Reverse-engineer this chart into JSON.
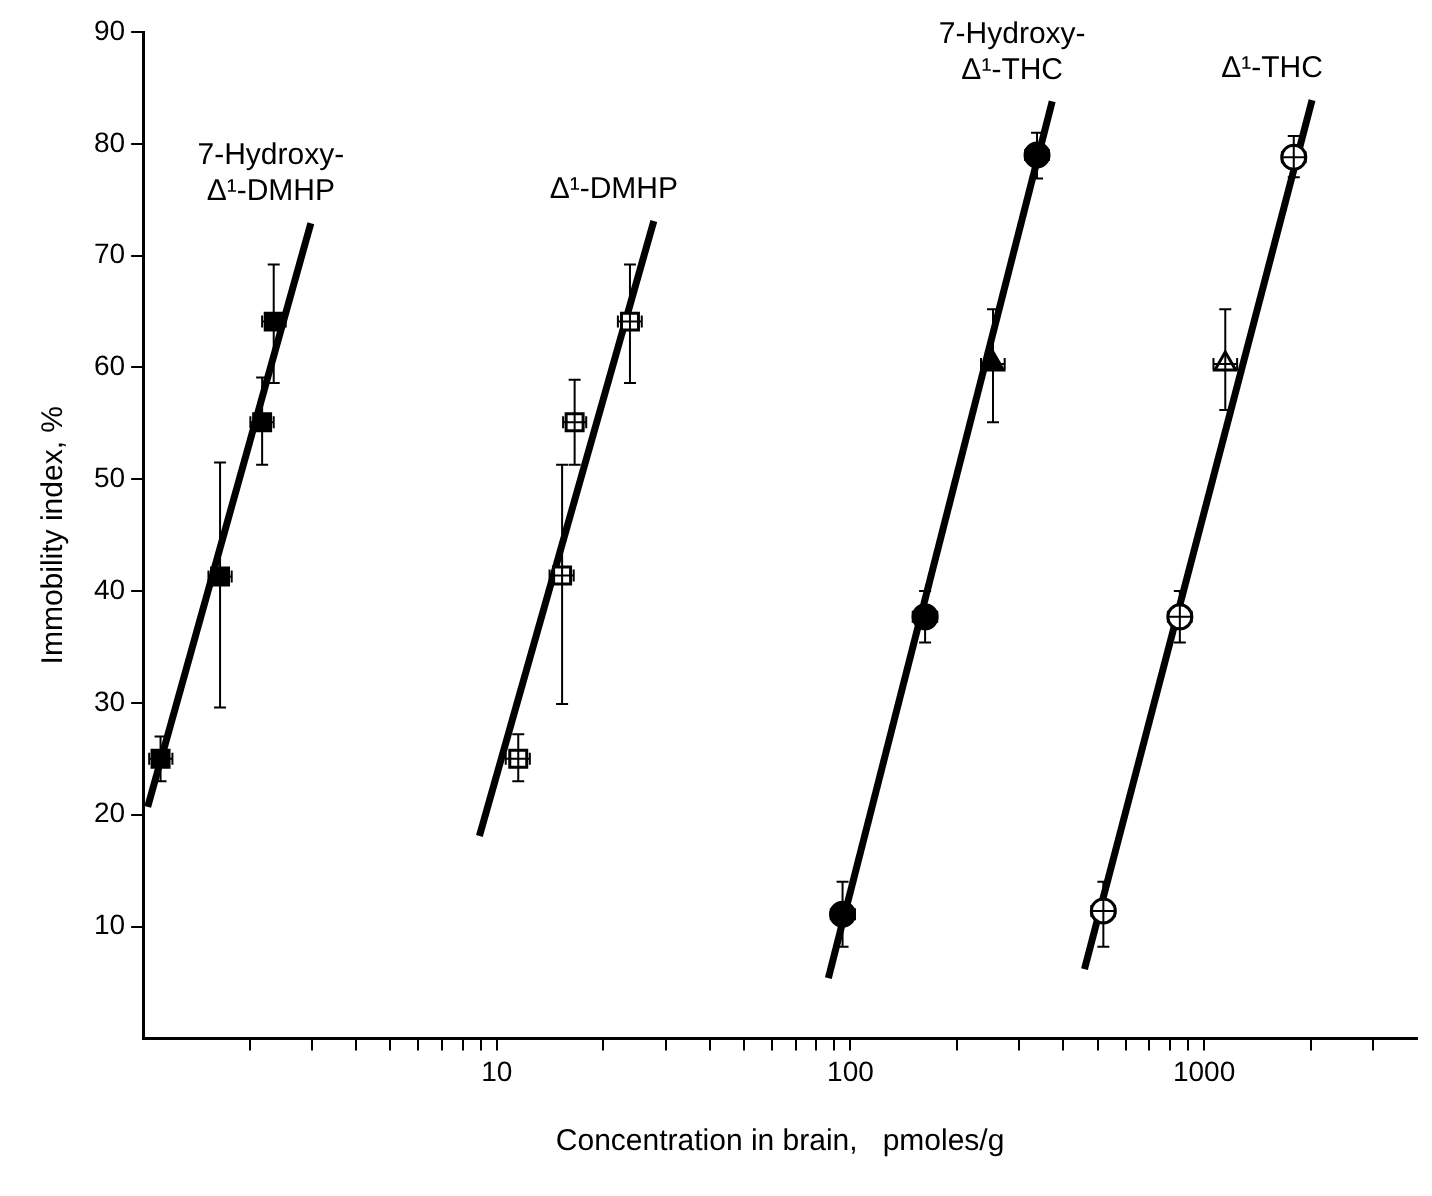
{
  "chart_data": {
    "type": "scatter",
    "xlabel": "Concentration in brain,   pmoles/g",
    "ylabel": "Immobility index, %",
    "log": "x",
    "grid": false,
    "legend": false,
    "xlim": [
      1,
      4000
    ],
    "ylim": [
      0,
      90
    ],
    "xticks": [
      {
        "value": 2,
        "label": null
      },
      {
        "value": 3,
        "label": null
      },
      {
        "value": 4,
        "label": null
      },
      {
        "value": 5,
        "label": null
      },
      {
        "value": 6,
        "label": null
      },
      {
        "value": 7,
        "label": null
      },
      {
        "value": 8,
        "label": null
      },
      {
        "value": 9,
        "label": null
      },
      10,
      {
        "value": 20,
        "label": null
      },
      {
        "value": 30,
        "label": null
      },
      {
        "value": 40,
        "label": null
      },
      {
        "value": 50,
        "label": null
      },
      {
        "value": 60,
        "label": null
      },
      {
        "value": 70,
        "label": null
      },
      {
        "value": 80,
        "label": null
      },
      {
        "value": 90,
        "label": null
      },
      100,
      {
        "value": 200,
        "label": null
      },
      {
        "value": 300,
        "label": null
      },
      {
        "value": 400,
        "label": null
      },
      {
        "value": 500,
        "label": null
      },
      {
        "value": 600,
        "label": null
      },
      {
        "value": 700,
        "label": null
      },
      {
        "value": 800,
        "label": null
      },
      {
        "value": 900,
        "label": null
      },
      1000,
      {
        "value": 2000,
        "label": null
      },
      {
        "value": 3000,
        "label": null
      }
    ],
    "yticks": [
      10,
      20,
      30,
      40,
      50,
      60,
      70,
      80,
      90
    ],
    "series": [
      {
        "type": "line",
        "name": "7-Hydroxy-Δ¹-DMHP",
        "color": "#000000",
        "x": [
          1.03,
          2.98
        ],
        "values": [
          20.7,
          72.9
        ]
      },
      {
        "marker": "square",
        "color": "#000000",
        "x": [
          1.12,
          1.65,
          2.17,
          2.34
        ],
        "values": [
          25,
          41.3,
          55.1,
          64.1
        ],
        "errors": [
          [
            23,
            27
          ],
          [
            29.6,
            51.5
          ],
          [
            51.3,
            59.1
          ],
          [
            58.6,
            69.2
          ]
        ],
        "xerrors": [
          [
            1.04,
            1.21
          ],
          [
            1.53,
            1.78
          ],
          [
            2.01,
            2.34
          ],
          [
            2.17,
            2.53
          ]
        ]
      },
      {
        "type": "line",
        "name": "Δ¹-DMHP",
        "color": "#000000",
        "x": [
          8.93,
          27.8
        ],
        "values": [
          18.1,
          73.1
        ]
      },
      {
        "marker": "square",
        "color": "#ffffff",
        "x": [
          11.5,
          15.3,
          16.6,
          23.8
        ],
        "values": [
          25,
          41.4,
          55.1,
          64.1
        ],
        "errors": [
          [
            23,
            27.2
          ],
          [
            29.9,
            51.3
          ],
          [
            51.3,
            58.9
          ],
          [
            58.6,
            69.2
          ]
        ],
        "xerrors": [
          [
            10.6,
            12.4
          ],
          [
            14.1,
            16.5
          ],
          [
            15.4,
            17.9
          ],
          [
            22,
            25.7
          ]
        ]
      },
      {
        "type": "line",
        "name": "7-Hydroxy-Δ¹-THC",
        "color": "#000000",
        "x": [
          86.6,
          372
        ],
        "values": [
          5.4,
          83.8
        ]
      },
      {
        "marker": "circle",
        "color": "#000000",
        "x": [
          95,
          162.6,
          337
        ],
        "values": [
          11.1,
          37.7,
          79
        ],
        "errors": [
          [
            8.2,
            14
          ],
          [
            35.4,
            40
          ],
          [
            76.9,
            81
          ]
        ],
        "xerrors": [
          [
            88,
            103
          ],
          [
            150,
            176
          ],
          [
            312,
            364
          ]
        ]
      },
      {
        "marker": "triangle",
        "color": "#000000",
        "x": [
          253
        ],
        "values": [
          60.3
        ],
        "errors": [
          [
            55.1,
            65.2
          ]
        ],
        "xerrors": [
          [
            234,
            273
          ]
        ]
      },
      {
        "type": "line",
        "name": "Δ¹-THC",
        "color": "#000000",
        "x": [
          459,
          2020
        ],
        "values": [
          6.2,
          83.9
        ]
      },
      {
        "marker": "circle",
        "color": "#ffffff",
        "x": [
          519,
          854,
          1793
        ],
        "values": [
          11.4,
          37.7,
          78.8
        ],
        "errors": [
          [
            8.2,
            14
          ],
          [
            35.4,
            40
          ],
          [
            77,
            80.7
          ]
        ],
        "xerrors": [
          [
            480,
            560
          ],
          [
            790,
            922
          ],
          [
            1660,
            1936
          ]
        ]
      },
      {
        "marker": "triangle",
        "color": "#ffffff",
        "x": [
          1148
        ],
        "values": [
          60.3
        ],
        "errors": [
          [
            56.2,
            65.2
          ]
        ],
        "xerrors": [
          [
            1063,
            1240
          ]
        ]
      }
    ]
  }
}
